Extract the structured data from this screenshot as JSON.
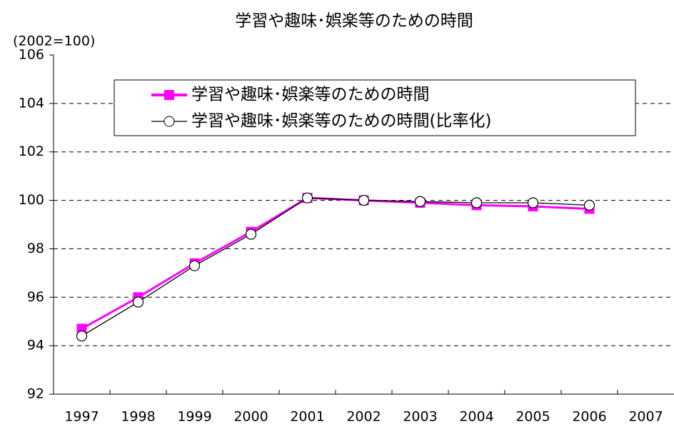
{
  "chart_data": {
    "type": "line",
    "title": "学習や趣味･娯楽等のための時間",
    "y_unit": "(2002=100)",
    "categories": [
      "1997",
      "1998",
      "1999",
      "2000",
      "2001",
      "2002",
      "2003",
      "2004",
      "2005",
      "2006",
      "2007"
    ],
    "series": [
      {
        "name": "学習や趣味･娯楽等のための時間",
        "color": "#ff00ff",
        "marker": "square",
        "values": [
          94.7,
          96.0,
          97.4,
          98.7,
          100.1,
          100.0,
          99.9,
          99.8,
          99.75,
          99.65,
          null
        ]
      },
      {
        "name": "学習や趣味･娯楽等のための時間(比率化)",
        "color": "#000000",
        "marker": "circle",
        "values": [
          94.4,
          95.8,
          97.3,
          98.6,
          100.1,
          100.0,
          99.95,
          99.9,
          99.9,
          99.8,
          null
        ]
      }
    ],
    "ylim": [
      92,
      106
    ],
    "yticks": [
      92,
      94,
      96,
      98,
      100,
      102,
      104,
      106
    ],
    "grid": true
  }
}
